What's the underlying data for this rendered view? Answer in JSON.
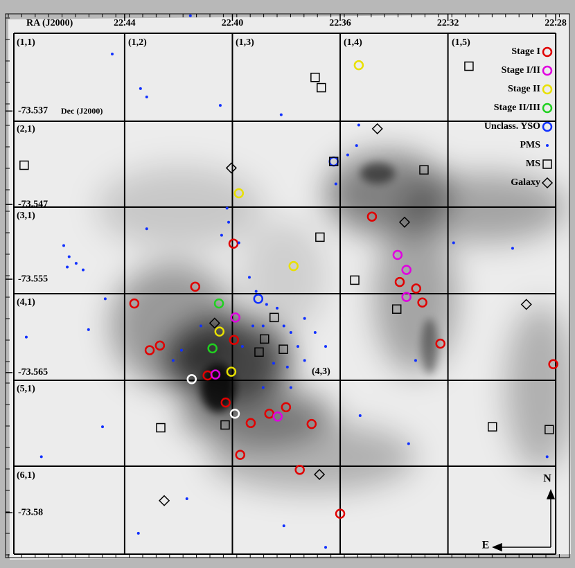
{
  "chart_data": {
    "type": "scatter",
    "xlabel": "RA (J2000)",
    "ylabel": "Dec (J2000)",
    "xlim": [
      22.4842,
      22.2749
    ],
    "ylim": [
      -73.5848,
      -73.5266
    ],
    "xticks": [
      22.44,
      {
        "value": 22.4,
        "label": "22.40"
      },
      22.36,
      22.32,
      22.28
    ],
    "yticks": [
      -73.537,
      -73.547,
      -73.555,
      -73.565,
      -73.58
    ],
    "cell_labels": [
      "(1,1)",
      "(1,2)",
      "(1,3)",
      "(1,4)",
      "(1,5)",
      "(2,1)",
      "(3,1)",
      "(4,1)",
      "(4,3)",
      "(5,1)",
      "(6,1)"
    ],
    "compass": [
      "N",
      "E"
    ],
    "series": [
      {
        "name": "Stage I",
        "color": "#e00000",
        "marker": "circle",
        "x": [
          22.3996,
          22.4138,
          22.4364,
          22.4269,
          22.4307,
          22.3994,
          22.4092,
          22.4025,
          22.3932,
          22.3863,
          22.3801,
          22.3706,
          22.3971,
          22.375,
          22.36,
          22.3482,
          22.3318,
          22.3295,
          22.3228,
          22.2809,
          22.3379
        ],
        "values": [
          -73.5512,
          -73.5558,
          -73.5576,
          -73.5621,
          -73.5626,
          -73.5615,
          -73.5653,
          -73.5682,
          -73.5704,
          -73.5694,
          -73.5687,
          -73.5705,
          -73.5738,
          -73.5754,
          -73.5801,
          -73.5483,
          -73.556,
          -73.5575,
          -73.5619,
          -73.5641,
          -73.5553
        ]
      },
      {
        "name": "Stage I/II",
        "color": "#e000e0",
        "marker": "circle",
        "x": [
          22.3387,
          22.3354,
          22.3354,
          22.3989,
          22.4063,
          22.3832
        ],
        "values": [
          -73.5524,
          -73.554,
          -73.5569,
          -73.5591,
          -73.5652,
          -73.5697
        ]
      },
      {
        "name": "Stage II",
        "color": "#e8e000",
        "marker": "circle",
        "x": [
          22.3531,
          22.3976,
          22.3773,
          22.4048,
          22.4004
        ],
        "values": [
          -73.5321,
          -73.5458,
          -73.5536,
          -73.5606,
          -73.5649
        ]
      },
      {
        "name": "Stage II/III",
        "color": "#20d020",
        "marker": "circle",
        "x": [
          22.405,
          22.4074
        ],
        "values": [
          -73.5576,
          -73.5624
        ]
      },
      {
        "name": "Unclass. YSO",
        "color": "#1030ff",
        "marker": "circle",
        "x": [
          22.3904,
          22.3624
        ],
        "values": [
          -73.5571,
          -73.5424
        ]
      },
      {
        "name": "PMS",
        "color": "#1030ff",
        "marker": "dot",
        "x": [
          22.4446,
          22.4156,
          22.4341,
          22.4318,
          22.4045,
          22.3819,
          22.3531,
          22.3539,
          22.3572,
          22.3616,
          22.402,
          22.4318,
          22.4626,
          22.4606,
          22.458,
          22.4554,
          22.4613,
          22.4765,
          22.4534,
          22.4472,
          22.422,
          22.4189,
          22.4117,
          22.404,
          22.4014,
          22.3976,
          22.3937,
          22.3912,
          22.3873,
          22.3834,
          22.3809,
          22.3783,
          22.3757,
          22.3732,
          22.3796,
          22.3847,
          22.3886,
          22.3924,
          22.3963,
          22.3732,
          22.3693,
          22.3654,
          22.3886,
          22.3783,
          22.3526,
          22.332,
          22.3179,
          22.296,
          22.4709,
          22.4349,
          22.3809,
          22.3654,
          22.3346,
          22.2832,
          22.4482,
          22.4169
        ],
        "values": [
          -73.5309,
          -73.5268,
          -73.5346,
          -73.5355,
          -73.5364,
          -73.5374,
          -73.5385,
          -73.5407,
          -73.5417,
          -73.5448,
          -73.5474,
          -73.5496,
          -73.5514,
          -73.5526,
          -73.5533,
          -73.554,
          -73.5537,
          -73.5612,
          -73.5604,
          -73.5571,
          -73.5637,
          -73.5626,
          -73.56,
          -73.5503,
          -73.5489,
          -73.5511,
          -73.5548,
          -73.5563,
          -73.5577,
          -73.5581,
          -73.56,
          -73.5607,
          -73.5622,
          -73.5637,
          -73.5644,
          -73.564,
          -73.56,
          -73.56,
          -73.5622,
          -73.5592,
          -73.5607,
          -73.5622,
          -73.5666,
          -73.5666,
          -73.5696,
          -73.5637,
          -73.5511,
          -73.5517,
          -73.574,
          -73.5822,
          -73.5814,
          -73.5837,
          -73.5726,
          -73.574,
          -73.5708,
          -73.5785
        ]
      },
      {
        "name": "MS",
        "color": "#000000",
        "marker": "square",
        "x": [
          22.3693,
          22.367,
          22.3122,
          22.4773,
          22.3624,
          22.3289,
          22.3675,
          22.3546,
          22.339,
          22.3845,
          22.3881,
          22.3901,
          22.3811,
          22.4266,
          22.4027,
          22.3035,
          22.2824
        ],
        "values": [
          -73.5334,
          -73.5345,
          -73.5322,
          -73.5428,
          -73.5424,
          -73.5433,
          -73.5505,
          -73.5551,
          -73.5582,
          -73.5591,
          -73.5614,
          -73.5628,
          -73.5625,
          -73.5709,
          -73.5706,
          -73.5708,
          -73.5711
        ]
      },
      {
        "name": "Galaxy",
        "color": "#000000",
        "marker": "diamond",
        "x": [
          22.3462,
          22.4004,
          22.3361,
          22.2909,
          22.4066,
          22.3677,
          22.4253
        ],
        "values": [
          -73.5389,
          -73.5431,
          -73.5489,
          -73.5577,
          -73.5597,
          -73.5759,
          -73.5787
        ]
      },
      {
        "color": "#ffffff",
        "marker": "circle",
        "x": [
          22.4151,
          22.3991
        ],
        "values": [
          -73.5657,
          -73.5694
        ]
      }
    ]
  }
}
